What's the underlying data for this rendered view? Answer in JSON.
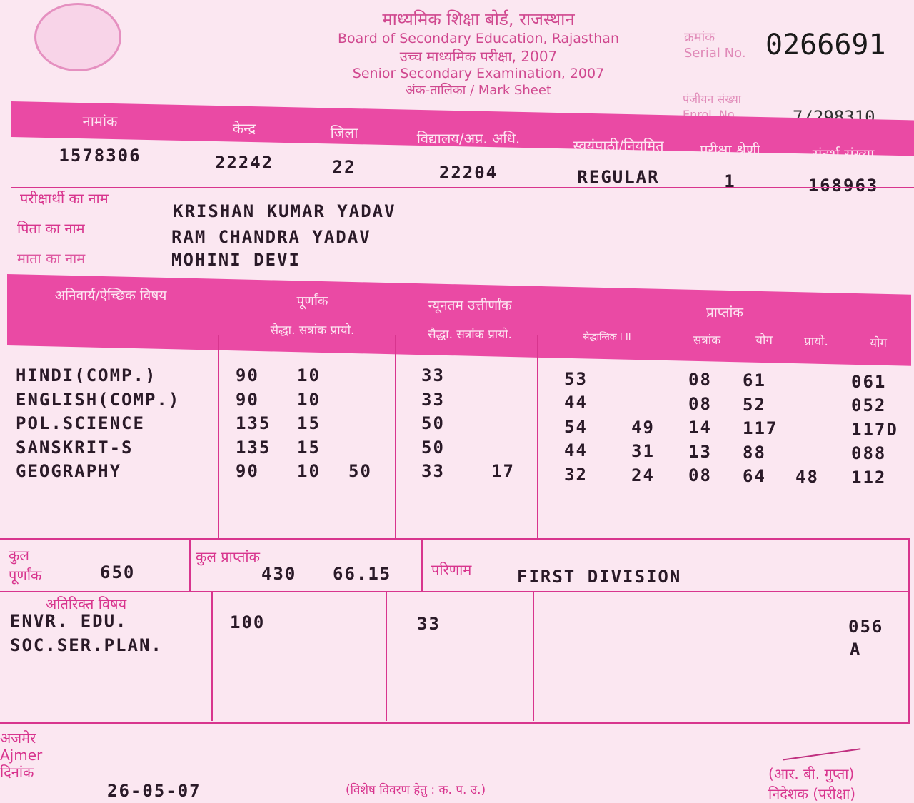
{
  "header": {
    "hindi_board": "माध्यमिक शिक्षा बोर्ड, राजस्थान",
    "board": "Board of Secondary Education, Rajasthan",
    "hindi_exam": "उच्च माध्यमिक परीक्षा, 2007",
    "exam": "Senior Secondary Examination, 2007",
    "sheet": "अंक-तालिका / Mark Sheet",
    "serial_label_hi": "क्रमांक",
    "serial_label": "Serial No.",
    "serial": "0266691",
    "enrol_label_hi": "पंजीयन संख्या",
    "enrol_label": "Enrol. No.",
    "enrol": "7/298310"
  },
  "info": {
    "headers": [
      "नामांक",
      "केन्द्र",
      "जिला",
      "विद्यालय/अप्र. अधि.",
      "स्वयंपाठी/नियमित",
      "परीक्षा श्रेणी",
      "संदर्भ संख्या"
    ],
    "values": [
      "1578306",
      "22242",
      "22",
      "22204",
      "REGULAR",
      "1",
      "168963"
    ]
  },
  "person": {
    "name_label": "परीक्षार्थी का नाम",
    "name": "KRISHAN KUMAR YADAV",
    "father_label": "पिता का नाम",
    "father": "RAM CHANDRA YADAV",
    "mother_label": "माता का नाम",
    "mother": "MOHINI DEVI"
  },
  "marks_header": {
    "subject": "अनिवार्य/ऐच्छिक विषय",
    "full": "पूर्णांक",
    "min": "न्यूनतम उत्तीर्णांक",
    "obtained": "प्राप्तांक",
    "sub_full": "सैद्धा. सत्रांक प्रायो.",
    "sub_min": "सैद्धा. सत्रांक प्रायो.",
    "sub_obt": [
      "सैद्धान्तिक I  II",
      "सत्रांक",
      "योग",
      "प्रायो.",
      "योग"
    ]
  },
  "rows": [
    [
      "HINDI(COMP.)",
      "90",
      "10",
      "",
      "33",
      "",
      "53",
      "",
      "08",
      "61",
      "",
      "061"
    ],
    [
      "ENGLISH(COMP.)",
      "90",
      "10",
      "",
      "33",
      "",
      "44",
      "",
      "08",
      "52",
      "",
      "052"
    ],
    [
      "POL.SCIENCE",
      "135",
      "15",
      "",
      "50",
      "",
      "54",
      "49",
      "14",
      "117",
      "",
      "117D"
    ],
    [
      "SANSKRIT-S",
      "135",
      "15",
      "",
      "50",
      "",
      "44",
      "31",
      "13",
      "88",
      "",
      "088"
    ],
    [
      "GEOGRAPHY",
      "90",
      "10",
      "50",
      "33",
      "17",
      "32",
      "24",
      "08",
      "64",
      "48",
      "112"
    ]
  ],
  "totals": {
    "full_label": "कुल पूर्णांक",
    "full": "650",
    "obt_label": "कुल प्राप्तांक",
    "obt": "430",
    "percent": "66.15",
    "result_label": "परिणाम",
    "result": "FIRST DIVISION"
  },
  "additional": {
    "label": "अतिरिक्त विषय",
    "subjects": [
      "ENVR. EDU.",
      "SOC.SER.PLAN."
    ],
    "full": "100",
    "min": "33",
    "marks": [
      "056",
      "A"
    ]
  },
  "footer": {
    "place_hi": "अजमेर",
    "place": "Ajmer",
    "date_label": "दिनांक",
    "date": "26-05-07",
    "note": "(विशेष विवरण हेतु : क. प. उ.)",
    "signatory": "(आर. बी. गुप्ता)",
    "designation": "निदेशक (परीक्षा)"
  }
}
